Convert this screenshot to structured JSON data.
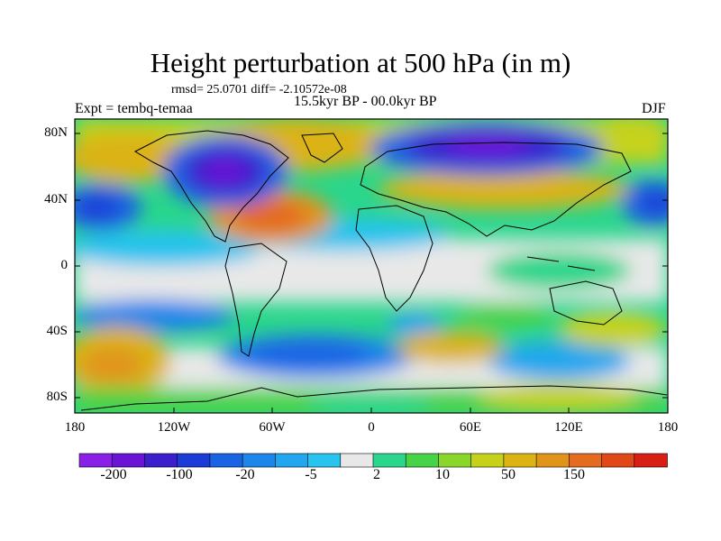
{
  "title": "Height perturbation at 500 hPa (in m)",
  "stats_line": "rmsd= 25.0701 diff= -2.10572e-08",
  "period": "15.5kyr BP - 00.0kyr BP",
  "experiment": "Expt = tembq-temaa",
  "season": "DJF",
  "lat_ticks": [
    "80N",
    "40N",
    "0",
    "40S",
    "80S"
  ],
  "lon_ticks": [
    "180",
    "120W",
    "60W",
    "0",
    "60E",
    "120E",
    "180"
  ],
  "colorbar": {
    "colors": [
      "#8a1fe6",
      "#6a14d6",
      "#3d1ecc",
      "#1b3cd6",
      "#1a63e3",
      "#1d86ea",
      "#22a7ee",
      "#28c3ee",
      "#e8e8e8",
      "#2ad68c",
      "#48d247",
      "#8ad62b",
      "#c6d21a",
      "#dbb314",
      "#e0951a",
      "#e56b20",
      "#e04818",
      "#d81f14"
    ],
    "labels": [
      "-200",
      "-100",
      "-20",
      "-5",
      "2",
      "10",
      "50",
      "150"
    ]
  }
}
